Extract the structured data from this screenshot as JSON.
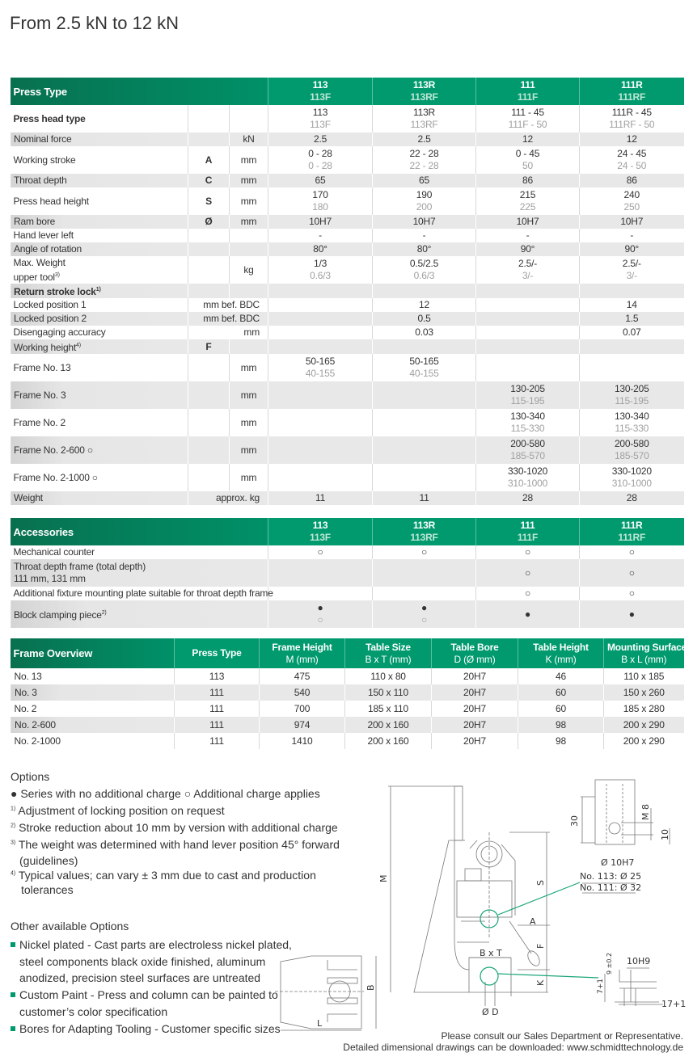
{
  "page_title": "From 2.5 kN to 12 kN",
  "colors": {
    "accent": "#009a6e",
    "header_dark": "#08704f",
    "row_grey": "#e8e8e8",
    "secondary_text": "#a0a0a0"
  },
  "models": [
    {
      "main": "113",
      "sub": "113F"
    },
    {
      "main": "113R",
      "sub": "113RF"
    },
    {
      "main": "111",
      "sub": "111F"
    },
    {
      "main": "111R",
      "sub": "111RF"
    }
  ],
  "specs": {
    "header": "Press Type",
    "rows": [
      {
        "label": "Press head type",
        "bold": true,
        "letter": "",
        "unit": "",
        "cells": [
          [
            "113",
            "113F"
          ],
          [
            "113R",
            "113RF"
          ],
          [
            "111 - 45",
            "111F - 50"
          ],
          [
            "111R - 45",
            "111RF - 50"
          ]
        ]
      },
      {
        "label": "Nominal force",
        "letter": "",
        "unit": "kN",
        "cells": [
          [
            "2.5"
          ],
          [
            "2.5"
          ],
          [
            "12"
          ],
          [
            "12"
          ]
        ]
      },
      {
        "label": "Working stroke",
        "letter": "A",
        "unit": "mm",
        "cells": [
          [
            "0 - 28",
            "0 - 28"
          ],
          [
            "22 - 28",
            "22 - 28"
          ],
          [
            "0 - 45",
            "50"
          ],
          [
            "24 - 45",
            "24 - 50"
          ]
        ]
      },
      {
        "label": "Throat depth",
        "letter": "C",
        "unit": "mm",
        "cells": [
          [
            "65"
          ],
          [
            "65"
          ],
          [
            "86"
          ],
          [
            "86"
          ]
        ]
      },
      {
        "label": "Press head height",
        "letter": "S",
        "unit": "mm",
        "cells": [
          [
            "170",
            "180"
          ],
          [
            "190",
            "200"
          ],
          [
            "215",
            "225"
          ],
          [
            "240",
            "250"
          ]
        ]
      },
      {
        "label": "Ram bore",
        "letter": "Ø",
        "unit": "mm",
        "cells": [
          [
            "10H7"
          ],
          [
            "10H7"
          ],
          [
            "10H7"
          ],
          [
            "10H7"
          ]
        ]
      },
      {
        "label": "Hand lever left",
        "letter": "",
        "unit": "",
        "cells": [
          [
            "-"
          ],
          [
            "-"
          ],
          [
            "-"
          ],
          [
            "-"
          ]
        ]
      },
      {
        "label": "Angle of rotation",
        "letter": "",
        "unit": "",
        "cells": [
          [
            "80°"
          ],
          [
            "80°"
          ],
          [
            "90°"
          ],
          [
            "90°"
          ]
        ]
      },
      {
        "label": "Max. Weight",
        "label2": "upper tool",
        "sup": "3)",
        "letter": "",
        "unit": "kg",
        "cells": [
          [
            "1/3",
            "0.6/3"
          ],
          [
            "0.5/2.5",
            "0.6/3"
          ],
          [
            "2.5/-",
            "3/-"
          ],
          [
            "2.5/-",
            "3/-"
          ]
        ]
      },
      {
        "label": "Return stroke lock",
        "sup": "1)",
        "bold": true,
        "letter": "",
        "unit": "",
        "cells": [
          [
            ""
          ],
          [
            ""
          ],
          [
            ""
          ],
          [
            ""
          ]
        ]
      },
      {
        "label": "Locked position 1",
        "wide_unit": "mm bef. BDC",
        "cells": [
          [
            ""
          ],
          [
            "12"
          ],
          [
            ""
          ],
          [
            "14"
          ]
        ]
      },
      {
        "label": "Locked position 2",
        "wide_unit": "mm bef. BDC",
        "cells": [
          [
            ""
          ],
          [
            "0.5"
          ],
          [
            ""
          ],
          [
            "1.5"
          ]
        ]
      },
      {
        "label": "Disengaging accuracy",
        "wide_unit": "mm",
        "cells": [
          [
            ""
          ],
          [
            "0.03"
          ],
          [
            ""
          ],
          [
            "0.07"
          ]
        ]
      },
      {
        "label": "Working height",
        "sup": "4)",
        "letter": "F",
        "unit": "",
        "cells": [
          [
            ""
          ],
          [
            ""
          ],
          [
            ""
          ],
          [
            ""
          ]
        ]
      },
      {
        "label": "Frame No. 13",
        "letter": "",
        "unit": "mm",
        "cells": [
          [
            "50-165",
            "40-155"
          ],
          [
            "50-165",
            "40-155"
          ],
          [
            ""
          ],
          [
            ""
          ]
        ]
      },
      {
        "label": "Frame No. 3",
        "letter": "",
        "unit": "mm",
        "cells": [
          [
            ""
          ],
          [
            ""
          ],
          [
            "130-205",
            "115-195"
          ],
          [
            "130-205",
            "115-195"
          ]
        ]
      },
      {
        "label": "Frame No. 2",
        "letter": "",
        "unit": "mm",
        "cells": [
          [
            ""
          ],
          [
            ""
          ],
          [
            "130-340",
            "115-330"
          ],
          [
            "130-340",
            "115-330"
          ]
        ]
      },
      {
        "label": "Frame No. 2-600 ○",
        "tall": true,
        "letter": "",
        "unit": "mm",
        "cells": [
          [
            ""
          ],
          [
            ""
          ],
          [
            "200-580",
            "185-570"
          ],
          [
            "200-580",
            "185-570"
          ]
        ]
      },
      {
        "label": "Frame No. 2-1000 ○",
        "tall": true,
        "letter": "",
        "unit": "mm",
        "cells": [
          [
            ""
          ],
          [
            ""
          ],
          [
            "330-1020",
            "310-1000"
          ],
          [
            "330-1020",
            "310-1000"
          ]
        ]
      },
      {
        "label": "Weight",
        "wide_unit": "approx. kg",
        "cells": [
          [
            "11"
          ],
          [
            "11"
          ],
          [
            "28"
          ],
          [
            "28"
          ]
        ]
      }
    ]
  },
  "accessories": {
    "header": "Accessories",
    "rows": [
      {
        "label": "Mechanical counter",
        "cells": [
          [
            "○"
          ],
          [
            "○"
          ],
          [
            "○"
          ],
          [
            "○"
          ]
        ]
      },
      {
        "label": "Throat depth frame (total depth)",
        "label2": "111 mm, 131 mm",
        "cells": [
          [
            ""
          ],
          [
            ""
          ],
          [
            "○"
          ],
          [
            "○"
          ]
        ]
      },
      {
        "label": "Additional fixture mounting plate suitable for throat depth frame",
        "cells": [
          [
            ""
          ],
          [
            ""
          ],
          [
            "○"
          ],
          [
            "○"
          ]
        ]
      },
      {
        "label": "Block clamping piece",
        "sup": "2)",
        "cells": [
          [
            "●",
            "○"
          ],
          [
            "●",
            "○"
          ],
          [
            "●"
          ],
          [
            "●"
          ]
        ]
      }
    ]
  },
  "frames": {
    "headers": [
      {
        "main": "Frame Overview",
        "sub": ""
      },
      {
        "main": "Press Type",
        "sub": ""
      },
      {
        "main": "Frame Height",
        "sub": "M (mm)"
      },
      {
        "main": "Table Size",
        "sub": "B x T (mm)"
      },
      {
        "main": "Table Bore",
        "sub": "D (Ø mm)"
      },
      {
        "main": "Table Height",
        "sub": "K (mm)"
      },
      {
        "main": "Mounting Surface",
        "sub": "B x L (mm)"
      }
    ],
    "rows": [
      [
        "No. 13",
        "113",
        "475",
        "110 x 80",
        "20H7",
        "46",
        "110 x 185"
      ],
      [
        "No. 3",
        "111",
        "540",
        "150 x 110",
        "20H7",
        "60",
        "150 x 260"
      ],
      [
        "No. 2",
        "111",
        "700",
        "185 x 110",
        "20H7",
        "60",
        "185 x 280"
      ],
      [
        "No. 2-600",
        "111",
        "974",
        "200 x 160",
        "20H7",
        "98",
        "200 x 290"
      ],
      [
        "No. 2-1000",
        "111",
        "1410",
        "200 x 160",
        "20H7",
        "98",
        "200 x 290"
      ]
    ]
  },
  "options": {
    "title": "Options",
    "legend_included": "● Series with no additional charge",
    "legend_charge": "○ Additional charge applies",
    "notes": [
      {
        "mark": "1)",
        "text": "Adjustment of locking position on request"
      },
      {
        "mark": "2)",
        "text": "Stroke reduction about 10 mm by version with additional charge"
      },
      {
        "mark": "3)",
        "text": "The weight was determined with hand lever position 45° forward",
        "text2": "(guidelines)"
      },
      {
        "mark": "4)",
        "text": "Typical values; can vary ± 3 mm due to cast and production",
        "text2": "tolerances"
      }
    ]
  },
  "other_options": {
    "title": "Other available Options",
    "items": [
      {
        "lines": [
          "Nickel plated - Cast parts are electroless nickel plated,",
          "steel components black oxide finished, aluminum",
          "anodized, precision steel surfaces are untreated"
        ]
      },
      {
        "lines": [
          "Custom Paint - Press and column can be painted to",
          "customer’s color specification"
        ]
      },
      {
        "lines": [
          "Bores for Adapting Tooling - Customer specific sizes"
        ]
      }
    ]
  },
  "drawing": {
    "M": "M",
    "S": "S",
    "A": "A",
    "F": "F",
    "K": "K",
    "BxT": "B x T",
    "D": "Ø D",
    "B": "B",
    "L": "L",
    "d30": "30",
    "M8": "M 8",
    "d10": "10",
    "bore": "Ø 10H7",
    "no113": "No. 113: Ø 25",
    "no111": "No. 111: Ø 32",
    "slot": "10H9",
    "d9": "9 ±0.2",
    "d7": "7+1",
    "d17": "17+1"
  },
  "footer": {
    "line1": "Please consult our Sales Department or Representative.",
    "line2": "Detailed dimensional drawings can be downloaded: www.schmidttechnology.de"
  }
}
